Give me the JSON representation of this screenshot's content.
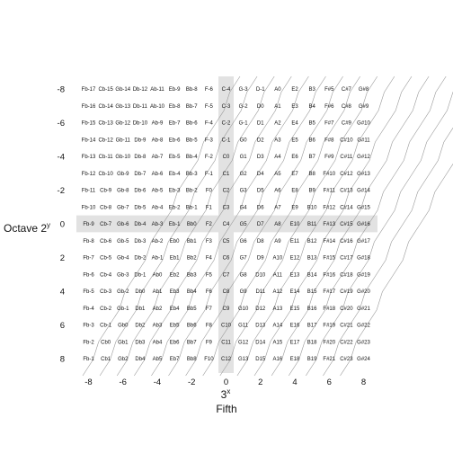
{
  "chart_data": {
    "type": "table",
    "x_label": "3",
    "x_label_exp": "x",
    "x_sublabel": "Fifth",
    "y_label": "Octave 2",
    "y_label_exp": "y",
    "x_ticks": [
      -8,
      -6,
      -4,
      -2,
      0,
      2,
      4,
      6,
      8
    ],
    "y_ticks": [
      -8,
      -6,
      -4,
      -2,
      0,
      2,
      4,
      6,
      8
    ],
    "x_range": [
      -8,
      8
    ],
    "y_range": [
      -8,
      8
    ],
    "highlight_row": 0,
    "highlight_col": 0,
    "colors": {
      "highlight": "#e2e2e2",
      "curve": "#9a9a9a",
      "text": "#111111"
    },
    "grid": [
      [
        "Fb-17",
        "Cb-15",
        "Gb-14",
        "Db-12",
        "Ab-11",
        "Eb-9",
        "Bb-8",
        "F-6",
        "C-4",
        "G-3",
        "D-1",
        "A0",
        "E2",
        "B3",
        "F#5",
        "C#7",
        "G#8"
      ],
      [
        "Fb-16",
        "Cb-14",
        "Gb-13",
        "Db-11",
        "Ab-10",
        "Eb-8",
        "Bb-7",
        "F-5",
        "C-3",
        "G-2",
        "D0",
        "A1",
        "E3",
        "B4",
        "F#6",
        "C#8",
        "G#9"
      ],
      [
        "Fb-15",
        "Cb-13",
        "Gb-12",
        "Db-10",
        "Ab-9",
        "Eb-7",
        "Bb-6",
        "F-4",
        "C-2",
        "G-1",
        "D1",
        "A2",
        "E4",
        "B5",
        "F#7",
        "C#9",
        "G#10"
      ],
      [
        "Fb-14",
        "Cb-12",
        "Gb-11",
        "Db-9",
        "Ab-8",
        "Eb-6",
        "Bb-5",
        "F-3",
        "C-1",
        "G0",
        "D2",
        "A3",
        "E5",
        "B6",
        "F#8",
        "C#10",
        "G#11"
      ],
      [
        "Fb-13",
        "Cb-11",
        "Gb-10",
        "Db-8",
        "Ab-7",
        "Eb-5",
        "Bb-4",
        "F-2",
        "C0",
        "G1",
        "D3",
        "A4",
        "E6",
        "B7",
        "F#9",
        "C#11",
        "G#12"
      ],
      [
        "Fb-12",
        "Cb-10",
        "Gb-9",
        "Db-7",
        "Ab-6",
        "Eb-4",
        "Bb-3",
        "F-1",
        "C1",
        "G2",
        "D4",
        "A5",
        "E7",
        "B8",
        "F#10",
        "C#12",
        "G#13"
      ],
      [
        "Fb-11",
        "Cb-9",
        "Gb-8",
        "Db-6",
        "Ab-5",
        "Eb-3",
        "Bb-2",
        "F0",
        "C2",
        "G3",
        "D5",
        "A6",
        "E8",
        "B9",
        "F#11",
        "C#13",
        "G#14"
      ],
      [
        "Fb-10",
        "Cb-8",
        "Gb-7",
        "Db-5",
        "Ab-4",
        "Eb-2",
        "Bb-1",
        "F1",
        "C3",
        "G4",
        "D6",
        "A7",
        "E9",
        "B10",
        "F#12",
        "C#14",
        "G#15"
      ],
      [
        "Fb-9",
        "Cb-7",
        "Gb-6",
        "Db-4",
        "Ab-3",
        "Eb-1",
        "Bb0",
        "F2",
        "C4",
        "G5",
        "D7",
        "A8",
        "E10",
        "B11",
        "F#13",
        "C#15",
        "G#16"
      ],
      [
        "Fb-8",
        "Cb-6",
        "Gb-5",
        "Db-3",
        "Ab-2",
        "Eb0",
        "Bb1",
        "F3",
        "C5",
        "G6",
        "D8",
        "A9",
        "E11",
        "B12",
        "F#14",
        "C#16",
        "G#17"
      ],
      [
        "Fb-7",
        "Cb-5",
        "Gb-4",
        "Db-2",
        "Ab-1",
        "Eb1",
        "Bb2",
        "F4",
        "C6",
        "G7",
        "D9",
        "A10",
        "E12",
        "B13",
        "F#15",
        "C#17",
        "G#18"
      ],
      [
        "Fb-6",
        "Cb-4",
        "Gb-3",
        "Db-1",
        "Ab0",
        "Eb2",
        "Bb3",
        "F5",
        "C7",
        "G8",
        "D10",
        "A11",
        "E13",
        "B14",
        "F#16",
        "C#18",
        "G#19"
      ],
      [
        "Fb-5",
        "Cb-3",
        "Gb-2",
        "Db0",
        "Ab1",
        "Eb3",
        "Bb4",
        "F6",
        "C8",
        "G9",
        "D11",
        "A12",
        "E14",
        "B15",
        "F#17",
        "C#19",
        "G#20"
      ],
      [
        "Fb-4",
        "Cb-2",
        "Gb-1",
        "Db1",
        "Ab2",
        "Eb4",
        "Bb5",
        "F7",
        "C9",
        "G10",
        "D12",
        "A13",
        "E15",
        "B16",
        "F#18",
        "C#20",
        "G#21"
      ],
      [
        "Fb-3",
        "Cb-1",
        "Gb0",
        "Db2",
        "Ab3",
        "Eb5",
        "Bb6",
        "F8",
        "C10",
        "G11",
        "D13",
        "A14",
        "E16",
        "B17",
        "F#19",
        "C#21",
        "G#22"
      ],
      [
        "Fb-2",
        "Cb0",
        "Gb1",
        "Db3",
        "Ab4",
        "Eb6",
        "Bb7",
        "F9",
        "C11",
        "G12",
        "D14",
        "A15",
        "E17",
        "B18",
        "F#20",
        "C#22",
        "G#23"
      ],
      [
        "Fb-1",
        "Cb1",
        "Gb2",
        "Db4",
        "Ab5",
        "Eb7",
        "Bb8",
        "F10",
        "C12",
        "G13",
        "D15",
        "A16",
        "E18",
        "B19",
        "F#21",
        "C#23",
        "G#24"
      ]
    ]
  }
}
